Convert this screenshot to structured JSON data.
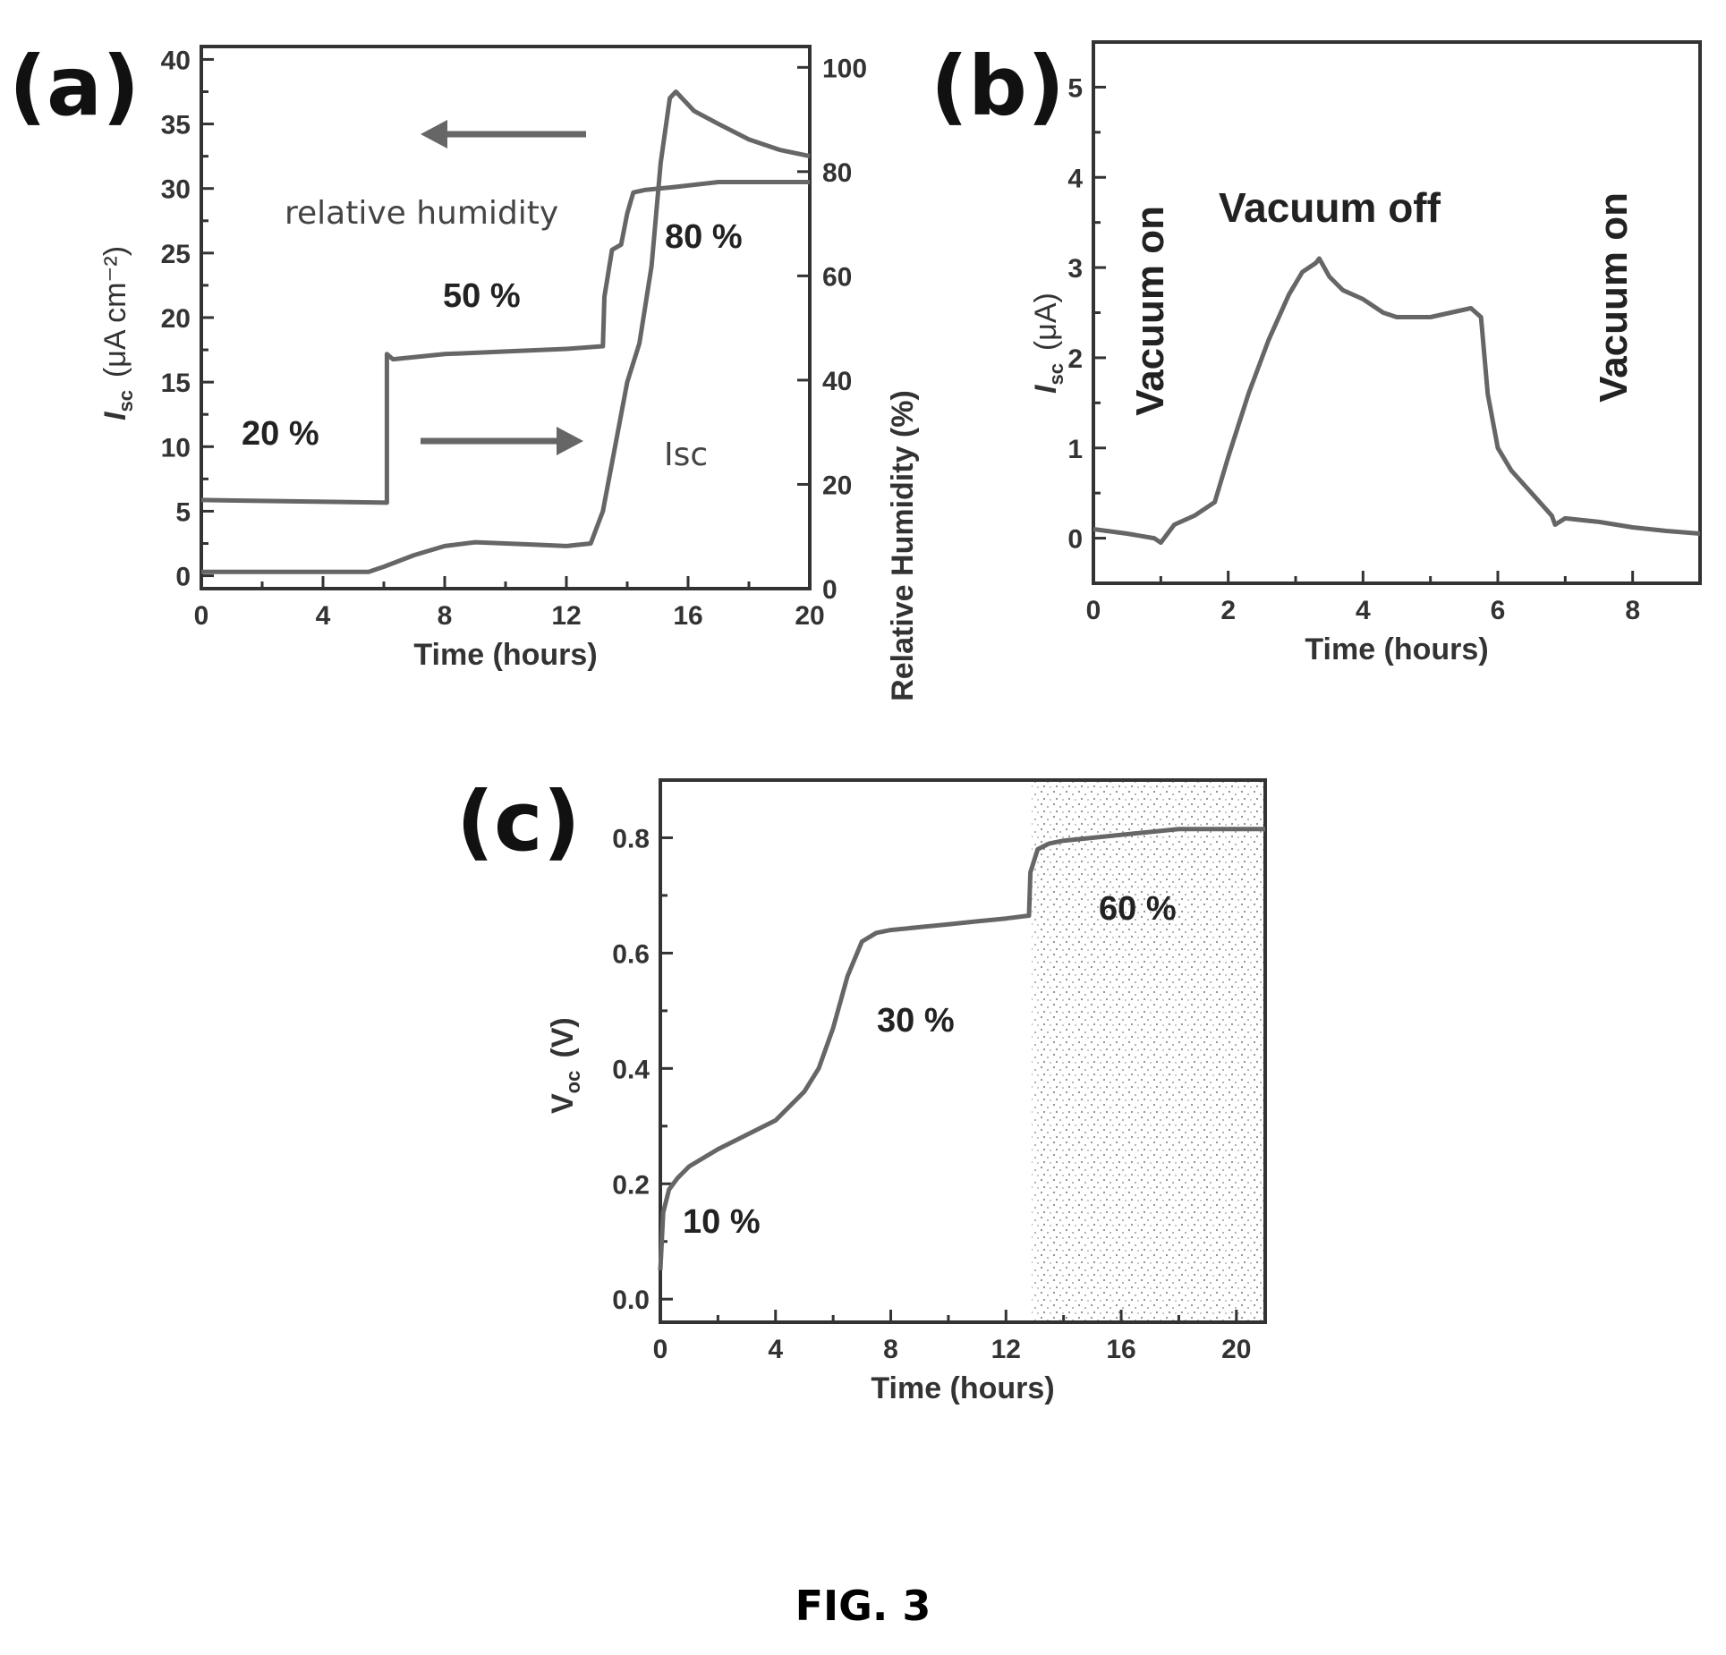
{
  "caption": "FIG. 3",
  "colors": {
    "curve": "#666666",
    "text": "#333333",
    "arrow": "#666666"
  },
  "panels": {
    "a": {
      "letter": "(a)",
      "y_label_main": "I",
      "y_label_sub": "sc",
      "y_label_unit": "(μA cm⁻²)",
      "y2_label": "Relative Humidity (%)",
      "annotations": [
        "relative humidity",
        "50 %",
        "20 %",
        "80 %",
        "Isc"
      ]
    },
    "b": {
      "letter": "(b)",
      "y_label_main": "I",
      "y_label_sub": "sc",
      "y_label_unit": "(μA)",
      "annotations": [
        "Vacuum on",
        "Vacuum off",
        "Vacuum on"
      ]
    },
    "c": {
      "letter": "(c)",
      "y_label_main": "V",
      "y_label_sub": "oc",
      "y_label_unit": "(V)",
      "annotations": [
        "10 %",
        "30 %",
        "60 %"
      ]
    }
  },
  "chart_data": [
    {
      "type": "line",
      "panel": "a",
      "xlabel": "Time (hours)",
      "ylabel": "Isc (μA cm⁻²)",
      "y2label": "Relative Humidity (%)",
      "xlim": [
        0,
        20
      ],
      "ylim": [
        -1,
        41
      ],
      "y2lim": [
        0,
        104
      ],
      "xticks": [
        0,
        4,
        8,
        12,
        16,
        20
      ],
      "yticks": [
        0,
        5,
        10,
        15,
        20,
        25,
        30,
        35,
        40
      ],
      "y2ticks": [
        0,
        20,
        40,
        60,
        80,
        100
      ],
      "series": [
        {
          "name": "relative humidity",
          "axis": "y2",
          "x": [
            0,
            6.1,
            6.1,
            6.3,
            8,
            10,
            12,
            13.2,
            13.25,
            13.5,
            13.8,
            14.0,
            14.2,
            14.6,
            15.5,
            17,
            18.5,
            20
          ],
          "y": [
            17,
            16.5,
            45,
            44,
            45,
            45.5,
            46,
            46.5,
            56,
            65,
            66,
            72,
            76,
            76.5,
            77,
            78,
            78,
            78
          ]
        },
        {
          "name": "Isc",
          "axis": "y",
          "x": [
            0,
            2,
            4,
            5.5,
            6,
            7,
            8,
            9,
            10,
            11,
            12,
            12.8,
            13.2,
            13.6,
            14.0,
            14.4,
            14.8,
            15.1,
            15.4,
            15.6,
            16.2,
            17,
            18,
            19,
            20
          ],
          "y": [
            0.3,
            0.3,
            0.3,
            0.3,
            0.7,
            1.6,
            2.3,
            2.6,
            2.5,
            2.4,
            2.3,
            2.5,
            5,
            10,
            15,
            18,
            24,
            32,
            37,
            37.5,
            36,
            35,
            33.8,
            33,
            32.5
          ]
        }
      ]
    },
    {
      "type": "line",
      "panel": "b",
      "xlabel": "Time (hours)",
      "ylabel": "Isc (μA)",
      "xlim": [
        0,
        9
      ],
      "ylim": [
        -0.5,
        5.5
      ],
      "xticks": [
        0,
        2,
        4,
        6,
        8
      ],
      "yticks": [
        0,
        1,
        2,
        3,
        4,
        5
      ],
      "series": [
        {
          "x": [
            0,
            0.5,
            0.9,
            1.0,
            1.2,
            1.5,
            1.8,
            2.0,
            2.3,
            2.6,
            2.9,
            3.1,
            3.3,
            3.35,
            3.5,
            3.7,
            4.0,
            4.3,
            4.5,
            4.8,
            5.0,
            5.3,
            5.6,
            5.75,
            5.85,
            6.0,
            6.2,
            6.5,
            6.8,
            6.85,
            7.0,
            7.5,
            8.0,
            8.5,
            9.0
          ],
          "y": [
            0.1,
            0.05,
            0.0,
            -0.05,
            0.15,
            0.25,
            0.4,
            0.9,
            1.6,
            2.2,
            2.7,
            2.95,
            3.05,
            3.1,
            2.9,
            2.75,
            2.65,
            2.5,
            2.45,
            2.45,
            2.45,
            2.5,
            2.55,
            2.45,
            1.6,
            1.0,
            0.75,
            0.5,
            0.25,
            0.15,
            0.22,
            0.18,
            0.12,
            0.08,
            0.05
          ]
        }
      ]
    },
    {
      "type": "line",
      "panel": "c",
      "xlabel": "Time (hours)",
      "ylabel": "Voc (V)",
      "xlim": [
        0,
        21
      ],
      "ylim": [
        -0.04,
        0.9
      ],
      "xticks": [
        0,
        4,
        8,
        12,
        16,
        20
      ],
      "yticks": [
        0.0,
        0.2,
        0.4,
        0.6,
        0.8
      ],
      "shaded_region_x": [
        12.9,
        21
      ],
      "series": [
        {
          "x": [
            0,
            0.1,
            0.3,
            0.6,
            1,
            2,
            3,
            4,
            5,
            5.5,
            6,
            6.5,
            7,
            7.5,
            8,
            9,
            10,
            11,
            12,
            12.8,
            12.85,
            13.1,
            13.5,
            14,
            15,
            16,
            17,
            18,
            19,
            20,
            21
          ],
          "y": [
            0.05,
            0.15,
            0.19,
            0.21,
            0.23,
            0.26,
            0.285,
            0.31,
            0.36,
            0.4,
            0.47,
            0.56,
            0.62,
            0.635,
            0.64,
            0.645,
            0.65,
            0.655,
            0.66,
            0.665,
            0.74,
            0.78,
            0.79,
            0.795,
            0.8,
            0.805,
            0.81,
            0.815,
            0.815,
            0.815,
            0.815
          ]
        }
      ]
    }
  ]
}
